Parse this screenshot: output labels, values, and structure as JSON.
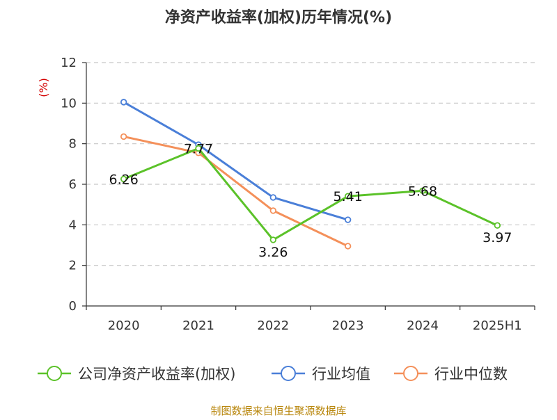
{
  "chart_data": {
    "type": "line",
    "title": "净资产收益率(加权)历年情况(%)",
    "ylabel": "(%)",
    "xlabel": "",
    "categories": [
      "2020",
      "2021",
      "2022",
      "2023",
      "2024",
      "2025H1"
    ],
    "ylim": [
      0,
      12
    ],
    "yticks": [
      0,
      2,
      4,
      6,
      8,
      10,
      12
    ],
    "grid": true,
    "legend_position": "bottom",
    "series": [
      {
        "name": "公司净资产收益率(加权)",
        "values": [
          6.26,
          7.77,
          3.26,
          5.41,
          5.68,
          3.97
        ],
        "color": "#5bc229",
        "show_labels": true
      },
      {
        "name": "行业均值",
        "values": [
          10.05,
          7.95,
          5.35,
          4.25,
          null,
          null
        ],
        "color": "#4a7fd8",
        "show_labels": false
      },
      {
        "name": "行业中位数",
        "values": [
          8.35,
          7.55,
          4.7,
          2.95,
          null,
          null
        ],
        "color": "#f4905a",
        "show_labels": false
      }
    ]
  },
  "footer": {
    "source": "制图数据来自恒生聚源数据库"
  }
}
